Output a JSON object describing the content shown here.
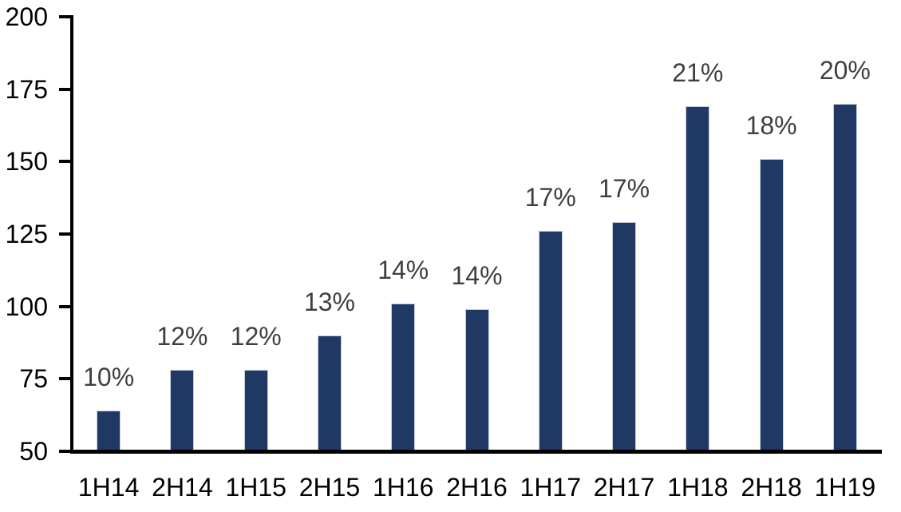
{
  "chart_data": {
    "type": "bar",
    "categories": [
      "1H14",
      "2H14",
      "1H15",
      "2H15",
      "1H16",
      "2H16",
      "1H17",
      "2H17",
      "1H18",
      "2H18",
      "1H19"
    ],
    "values": [
      64,
      78,
      78,
      90,
      101,
      99,
      126,
      129,
      169,
      151,
      170
    ],
    "bar_labels": [
      "10%",
      "12%",
      "12%",
      "13%",
      "14%",
      "14%",
      "17%",
      "17%",
      "21%",
      "18%",
      "20%"
    ],
    "ylim": [
      50,
      200
    ],
    "yticks": [
      50,
      75,
      100,
      125,
      150,
      175,
      200
    ],
    "ytick_labels": [
      "50",
      "75",
      "100",
      "125",
      "150",
      "175",
      "200"
    ],
    "grid": false,
    "legend": "none",
    "title": "",
    "xlabel": "",
    "ylabel": "",
    "colors": {
      "bar_fill": "#203864",
      "bar_border": "#C8CFDC",
      "value_label": "#3F3F3F",
      "axis": "#000000",
      "tick_label": "#000000",
      "background": "#FFFFFF"
    }
  }
}
